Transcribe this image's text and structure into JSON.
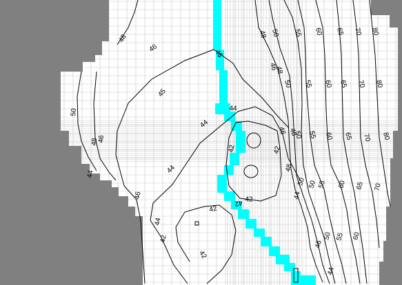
{
  "view": {
    "colors": {
      "background": "#ffffff",
      "inactive_cells": "#808080",
      "grid_lines": "#c8c8c8",
      "river_cells": "#00ffff",
      "contours": "#000000"
    }
  },
  "contour_labels": [
    {
      "text": "48"
    },
    {
      "text": "46"
    },
    {
      "text": "46"
    },
    {
      "text": "45"
    },
    {
      "text": "44"
    },
    {
      "text": "44"
    },
    {
      "text": "44"
    },
    {
      "text": "44"
    },
    {
      "text": "42"
    },
    {
      "text": "42"
    },
    {
      "text": "42"
    },
    {
      "text": "42"
    },
    {
      "text": "42"
    },
    {
      "text": "48"
    },
    {
      "text": "50"
    },
    {
      "text": "55"
    },
    {
      "text": "60"
    },
    {
      "text": "65"
    },
    {
      "text": "70"
    },
    {
      "text": "80"
    },
    {
      "text": "46"
    },
    {
      "text": "48"
    },
    {
      "text": "50"
    },
    {
      "text": "55"
    },
    {
      "text": "60"
    },
    {
      "text": "65"
    },
    {
      "text": "70"
    },
    {
      "text": "80"
    },
    {
      "text": "46"
    },
    {
      "text": "48"
    },
    {
      "text": "50"
    },
    {
      "text": "55"
    },
    {
      "text": "60"
    },
    {
      "text": "65"
    },
    {
      "text": "70"
    },
    {
      "text": "80"
    },
    {
      "text": "50"
    },
    {
      "text": "55"
    },
    {
      "text": "60"
    },
    {
      "text": "65"
    },
    {
      "text": "70"
    },
    {
      "text": "50"
    },
    {
      "text": "55"
    },
    {
      "text": "60"
    },
    {
      "text": "46"
    },
    {
      "text": "44"
    },
    {
      "text": "44"
    },
    {
      "text": "48"
    },
    {
      "text": "50"
    },
    {
      "text": "48"
    },
    {
      "text": "50"
    },
    {
      "text": "46"
    },
    {
      "text": "46"
    },
    {
      "text": "44"
    },
    {
      "text": "42"
    },
    {
      "text": "42"
    }
  ]
}
